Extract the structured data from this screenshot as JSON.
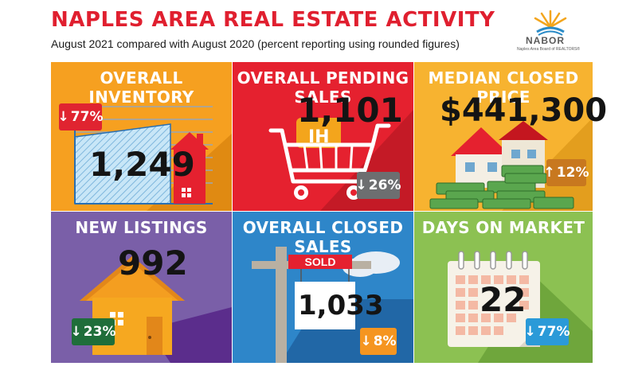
{
  "header": {
    "title": "NAPLES AREA REAL ESTATE ACTIVITY",
    "subtitle": "August 2021 compared with August 2020 (percent reporting using rounded figures)"
  },
  "logo": {
    "name": "NABOR",
    "tagline": "Naples Area Board of REALTORS®"
  },
  "colors": {
    "inventory_bg": "#f6a020",
    "pending_bg": "#e5212f",
    "median_bg": "#f7b330",
    "new_listings_bg": "#7a5fa8",
    "closed_bg": "#2e86c9",
    "days_bg": "#8cc152",
    "badge_red": "#e02430",
    "badge_gray": "#6d6e70",
    "badge_brown": "#c8781f",
    "badge_green": "#1f6e3a",
    "badge_orange": "#f59520",
    "badge_blue": "#2a9ad8"
  },
  "panels": {
    "inventory": {
      "title": "OVERALL INVENTORY",
      "value": "1,249",
      "change": "77%",
      "direction": "down",
      "icon": "house-chart-icon"
    },
    "pending": {
      "title": "OVERALL PENDING SALES",
      "value": "1,101",
      "change": "26%",
      "direction": "down",
      "icon": "shopping-cart-icon"
    },
    "median": {
      "title": "MEDIAN CLOSED PRICE",
      "value": "$441,300",
      "change": "12%",
      "direction": "up",
      "icon": "house-money-icon"
    },
    "new_listings": {
      "title": "NEW LISTINGS",
      "value": "992",
      "change": "23%",
      "direction": "down",
      "icon": "house-icon"
    },
    "closed": {
      "title": "OVERALL CLOSED SALES",
      "value": "1,033",
      "change": "8%",
      "direction": "down",
      "icon": "sold-sign-icon",
      "sign_label": "SOLD"
    },
    "days": {
      "title": "DAYS ON MARKET",
      "value": "22",
      "change": "77%",
      "direction": "down",
      "icon": "calendar-icon"
    }
  }
}
